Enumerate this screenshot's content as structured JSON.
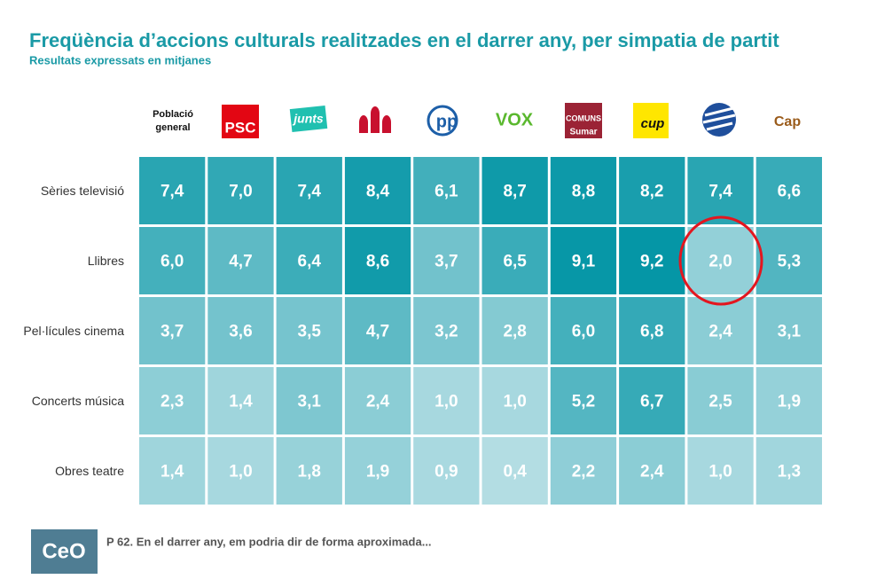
{
  "chart_data": {
    "type": "heatmap",
    "title": "Freqüència d’accions culturals realitzades en el darrer any, per simpatia de partit",
    "subtitle": "Resultats expressats en mitjanes",
    "columns": [
      [
        "Població",
        "general"
      ],
      [
        "PSC"
      ],
      [
        "junts"
      ],
      null,
      [
        "pp"
      ],
      [
        "VOX"
      ],
      [
        "COMUNS",
        "Sumar"
      ],
      [
        "cup"
      ],
      null,
      [
        "Cap"
      ]
    ],
    "rows": [
      "Sèries televisió",
      "Llibres",
      "Pel·lícules cinema",
      "Concerts música",
      "Obres teatre"
    ],
    "values": [
      [
        7.4,
        7.0,
        7.4,
        8.4,
        6.1,
        8.7,
        8.8,
        8.2,
        7.4,
        6.6
      ],
      [
        6.0,
        4.7,
        6.4,
        8.6,
        3.7,
        6.5,
        9.1,
        9.2,
        2.0,
        5.3
      ],
      [
        3.7,
        3.6,
        3.5,
        4.7,
        3.2,
        2.8,
        6.0,
        6.8,
        2.4,
        3.1
      ],
      [
        2.3,
        1.4,
        3.1,
        2.4,
        1.0,
        1.0,
        5.2,
        6.7,
        2.5,
        1.9
      ],
      [
        1.4,
        1.0,
        1.8,
        1.9,
        0.9,
        0.4,
        2.2,
        2.4,
        1.0,
        1.3
      ]
    ],
    "value_labels": [
      [
        "7,4",
        "7,0",
        "7,4",
        "8,4",
        "6,1",
        "8,7",
        "8,8",
        "8,2",
        "7,4",
        "6,6"
      ],
      [
        "6,0",
        "4,7",
        "6,4",
        "8,6",
        "3,7",
        "6,5",
        "9,1",
        "9,2",
        "2,0",
        "5,3"
      ],
      [
        "3,7",
        "3,6",
        "3,5",
        "4,7",
        "3,2",
        "2,8",
        "6,0",
        "6,8",
        "2,4",
        "3,1"
      ],
      [
        "2,3",
        "1,4",
        "3,1",
        "2,4",
        "1,0",
        "1,0",
        "5,2",
        "6,7",
        "2,5",
        "1,9"
      ],
      [
        "1,4",
        "1,0",
        "1,8",
        "1,9",
        "0,9",
        "0,4",
        "2,2",
        "2,4",
        "1,0",
        "1,3"
      ]
    ],
    "color_low": "#b3dde3",
    "color_high": "#0596a6"
  },
  "footer": {
    "logo": "CeO",
    "note": "P 62. En el darrer any, em podria dir de forma aproximada..."
  }
}
